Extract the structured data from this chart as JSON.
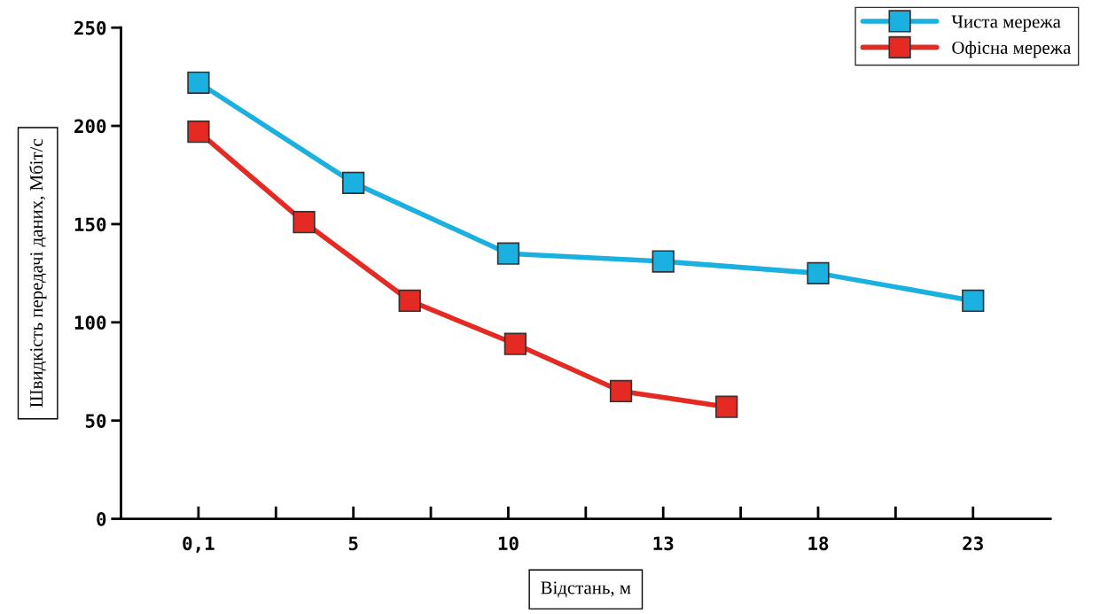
{
  "chart_data": {
    "type": "line",
    "xlabel": "Відстань, м",
    "ylabel": "Швидкість передачі даних, Мбіт/с",
    "categories": [
      "0,1",
      null,
      null,
      null,
      null,
      null,
      null,
      null,
      null,
      null,
      null,
      null,
      null,
      null,
      null,
      null,
      null,
      null,
      null,
      null,
      null,
      null,
      "5",
      null,
      null,
      null,
      null,
      null,
      null,
      null,
      null,
      null,
      null,
      null,
      null,
      null,
      null,
      null,
      null,
      null,
      null,
      null,
      null,
      null,
      "10",
      null,
      null,
      null,
      null,
      null,
      null,
      null,
      null,
      null,
      null,
      null,
      null,
      null,
      null,
      null,
      null,
      null,
      null,
      null,
      null,
      null,
      "13",
      null,
      null,
      null,
      null,
      null,
      null,
      null,
      null,
      null,
      null,
      null,
      null,
      null,
      null,
      null,
      null,
      null,
      null,
      null,
      null,
      null,
      "18",
      null,
      null,
      null,
      null,
      null,
      null,
      null,
      null,
      null,
      null,
      null,
      null,
      null,
      null,
      null,
      null,
      null,
      null,
      null,
      null,
      null,
      "23"
    ],
    "ylim": [
      0,
      250
    ],
    "yticks": [
      0,
      50,
      100,
      150,
      200,
      250
    ],
    "series": [
      {
        "name": "Чиста мережа",
        "color": "#1ab0e0",
        "values": [
          222,
          null,
          null,
          null,
          null,
          null,
          null,
          null,
          null,
          null,
          null,
          null,
          null,
          null,
          null,
          null,
          null,
          null,
          null,
          null,
          null,
          null,
          171,
          null,
          null,
          null,
          null,
          null,
          null,
          null,
          null,
          null,
          null,
          null,
          null,
          null,
          null,
          null,
          null,
          null,
          null,
          null,
          null,
          null,
          135,
          null,
          null,
          null,
          null,
          null,
          null,
          null,
          null,
          null,
          null,
          null,
          null,
          null,
          null,
          null,
          null,
          null,
          null,
          null,
          null,
          null,
          131,
          null,
          null,
          null,
          null,
          null,
          null,
          null,
          null,
          null,
          null,
          null,
          null,
          null,
          null,
          null,
          null,
          null,
          null,
          null,
          null,
          null,
          125,
          null,
          null,
          null,
          null,
          null,
          null,
          null,
          null,
          null,
          null,
          null,
          null,
          null,
          null,
          null,
          null,
          null,
          null,
          null,
          null,
          null,
          111
        ]
      },
      {
        "name": "Офісна мережа",
        "color": "#e42a22",
        "values": [
          197,
          null,
          null,
          null,
          null,
          null,
          null,
          null,
          null,
          null,
          null,
          null,
          null,
          null,
          null,
          151,
          null,
          null,
          null,
          null,
          null,
          null,
          null,
          null,
          null,
          null,
          null,
          null,
          null,
          null,
          111,
          null,
          null,
          null,
          null,
          null,
          null,
          null,
          null,
          null,
          null,
          null,
          null,
          null,
          null,
          89,
          null,
          null,
          null,
          null,
          null,
          null,
          null,
          null,
          null,
          null,
          null,
          null,
          null,
          null,
          65,
          null,
          null,
          null,
          null,
          null,
          null,
          null,
          null,
          null,
          null,
          null,
          null,
          null,
          null,
          57,
          null,
          null,
          null,
          null,
          null,
          null,
          null,
          null,
          null,
          null,
          null,
          null,
          null,
          null,
          null,
          null,
          null,
          null,
          null,
          null,
          null,
          null,
          null,
          null,
          null,
          null,
          null,
          null,
          null,
          null,
          null,
          null,
          null,
          null,
          null
        ]
      }
    ],
    "marker": "square",
    "line_style": "solid",
    "grid": false,
    "legend": "top right"
  }
}
